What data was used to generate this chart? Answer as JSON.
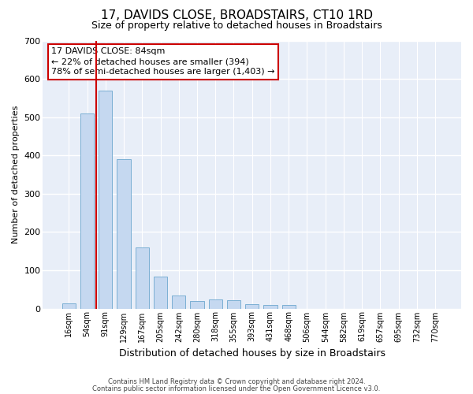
{
  "title": "17, DAVIDS CLOSE, BROADSTAIRS, CT10 1RD",
  "subtitle": "Size of property relative to detached houses in Broadstairs",
  "xlabel": "Distribution of detached houses by size in Broadstairs",
  "ylabel": "Number of detached properties",
  "bar_color": "#c5d8f0",
  "bar_edge_color": "#7bafd4",
  "background_color": "#e8eef8",
  "grid_color": "#ffffff",
  "annotation_box_color": "#cc0000",
  "vline_color": "#cc0000",
  "categories": [
    "16sqm",
    "54sqm",
    "91sqm",
    "129sqm",
    "167sqm",
    "205sqm",
    "242sqm",
    "280sqm",
    "318sqm",
    "355sqm",
    "393sqm",
    "431sqm",
    "468sqm",
    "506sqm",
    "544sqm",
    "582sqm",
    "619sqm",
    "657sqm",
    "695sqm",
    "732sqm",
    "770sqm"
  ],
  "values": [
    14,
    510,
    570,
    390,
    160,
    83,
    33,
    20,
    24,
    22,
    12,
    10,
    9,
    0,
    0,
    0,
    0,
    0,
    0,
    0,
    0
  ],
  "ylim": [
    0,
    700
  ],
  "yticks": [
    0,
    100,
    200,
    300,
    400,
    500,
    600,
    700
  ],
  "vline_x": 2,
  "annotation_text": "17 DAVIDS CLOSE: 84sqm\n← 22% of detached houses are smaller (394)\n78% of semi-detached houses are larger (1,403) →",
  "footer_line1": "Contains HM Land Registry data © Crown copyright and database right 2024.",
  "footer_line2": "Contains public sector information licensed under the Open Government Licence v3.0.",
  "title_fontsize": 11,
  "subtitle_fontsize": 9,
  "tick_fontsize": 7,
  "ylabel_fontsize": 8,
  "xlabel_fontsize": 9,
  "annotation_fontsize": 8,
  "footer_fontsize": 6
}
